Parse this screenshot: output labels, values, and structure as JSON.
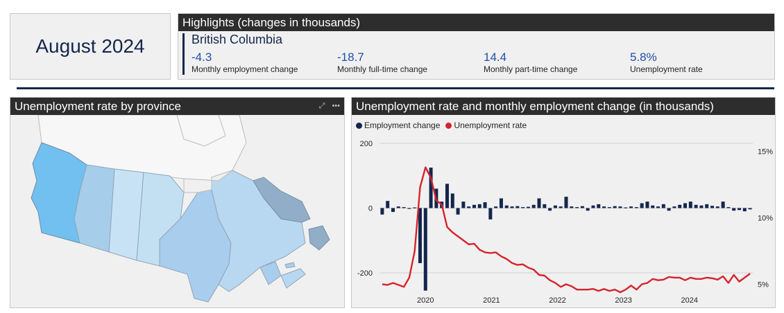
{
  "date_card": {
    "label": "August 2024"
  },
  "highlights": {
    "title": "Highlights (changes in thousands)",
    "region": "British Columbia",
    "metrics": [
      {
        "value": "-4.3",
        "label": "Monthly employment change"
      },
      {
        "value": "-18.7",
        "label": "Monthly full-time change"
      },
      {
        "value": "14.4",
        "label": "Monthly part-time change"
      },
      {
        "value": "5.8%",
        "label": "Unemployment rate"
      }
    ]
  },
  "map_panel": {
    "title": "Unemployment rate by province",
    "focus_icon": "focus-mode-icon",
    "more_icon": "more-options-icon"
  },
  "chart_panel": {
    "title": "Unemployment rate and monthly employment change (in thousands)",
    "legend": [
      {
        "label": "Employment change",
        "color": "#13264d"
      },
      {
        "label": "Unemployment rate",
        "color": "#d6232b"
      }
    ]
  },
  "chart_data": {
    "type": "bar+line",
    "title": "Unemployment rate and monthly employment change (in thousands)",
    "x_labels": [
      "2020",
      "2021",
      "2022",
      "2023",
      "2024"
    ],
    "y_left_ticks": [
      "200",
      "0",
      "-200"
    ],
    "y_left_range": [
      -260,
      200
    ],
    "y_right_ticks": [
      "15%",
      "10%",
      "5%"
    ],
    "y_right_range": [
      4.4,
      15.6
    ],
    "series": [
      {
        "name": "Employment change",
        "kind": "bar",
        "color": "#13264d",
        "values": [
          -20,
          22,
          -12,
          5,
          3,
          0,
          2,
          -170,
          -255,
          125,
          60,
          20,
          75,
          45,
          -20,
          20,
          5,
          10,
          12,
          18,
          -35,
          5,
          30,
          8,
          5,
          6,
          3,
          4,
          10,
          30,
          12,
          -8,
          8,
          5,
          35,
          5,
          3,
          6,
          -8,
          8,
          12,
          5,
          3,
          6,
          5,
          2,
          5,
          3,
          15,
          20,
          8,
          5,
          12,
          -8,
          5,
          10,
          15,
          20,
          10,
          8,
          12,
          7,
          5,
          20,
          3,
          -8,
          -6,
          -10,
          -4
        ]
      },
      {
        "name": "Unemployment rate",
        "kind": "line",
        "color": "#d6232b",
        "values": [
          5.0,
          4.95,
          5.1,
          4.95,
          4.8,
          5.5,
          7.5,
          12.3,
          13.8,
          13.0,
          11.3,
          11.0,
          9.3,
          8.9,
          8.6,
          8.3,
          8.0,
          8.05,
          7.6,
          7.4,
          7.35,
          7.4,
          7.1,
          6.9,
          6.6,
          6.45,
          6.5,
          6.25,
          6.1,
          5.7,
          5.65,
          5.3,
          5.1,
          4.8,
          5.0,
          4.85,
          4.6,
          4.6,
          4.6,
          4.65,
          4.5,
          4.65,
          4.5,
          4.6,
          4.4,
          4.6,
          4.9,
          4.6,
          5.0,
          5.1,
          5.4,
          5.3,
          5.35,
          5.55,
          5.5,
          5.5,
          5.3,
          5.5,
          5.4,
          5.4,
          5.5,
          5.45,
          5.35,
          5.6,
          5.1,
          5.7,
          5.2,
          5.5,
          5.8
        ]
      }
    ]
  }
}
